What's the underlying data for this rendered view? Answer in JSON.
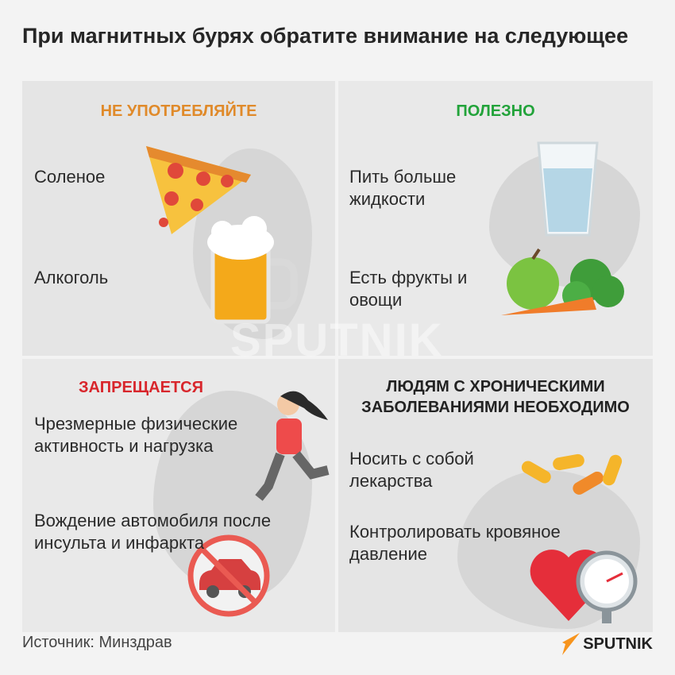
{
  "title": "При магнитных бурях обратите внимание на следующее",
  "panels": [
    {
      "heading": "НЕ УПОТРЕБЛЯЙТЕ",
      "color": "#e08a2a",
      "items": [
        "Соленое",
        "Алкоголь"
      ]
    },
    {
      "heading": "ПОЛЕЗНО",
      "color": "#22a33a",
      "items": [
        "Пить больше жидкости",
        "Есть фрукты и овощи"
      ]
    },
    {
      "heading": "ЗАПРЕЩАЕТСЯ",
      "color": "#d8262c",
      "items": [
        "Чрезмерные физические активность и нагрузка",
        "Вождение автомобиля после инсульта и инфаркта"
      ]
    },
    {
      "heading": "ЛЮДЯМ С ХРОНИЧЕСКИМИ ЗАБОЛЕВАНИЯМИ НЕОБХОДИМО",
      "color": "#222222",
      "items": [
        "Носить с собой лекарства",
        "Контролировать кровяное давление"
      ]
    }
  ],
  "footer": {
    "source": "Источник: Минздрав",
    "logo": "SPUTNIK",
    "watermark": "SPUTNIK"
  },
  "icons": [
    "pizza-icon",
    "beer-mug-icon",
    "water-glass-icon",
    "fruits-vegetables-icon",
    "runner-icon",
    "no-car-icon",
    "pills-icon",
    "heart-pressure-gauge-icon"
  ]
}
